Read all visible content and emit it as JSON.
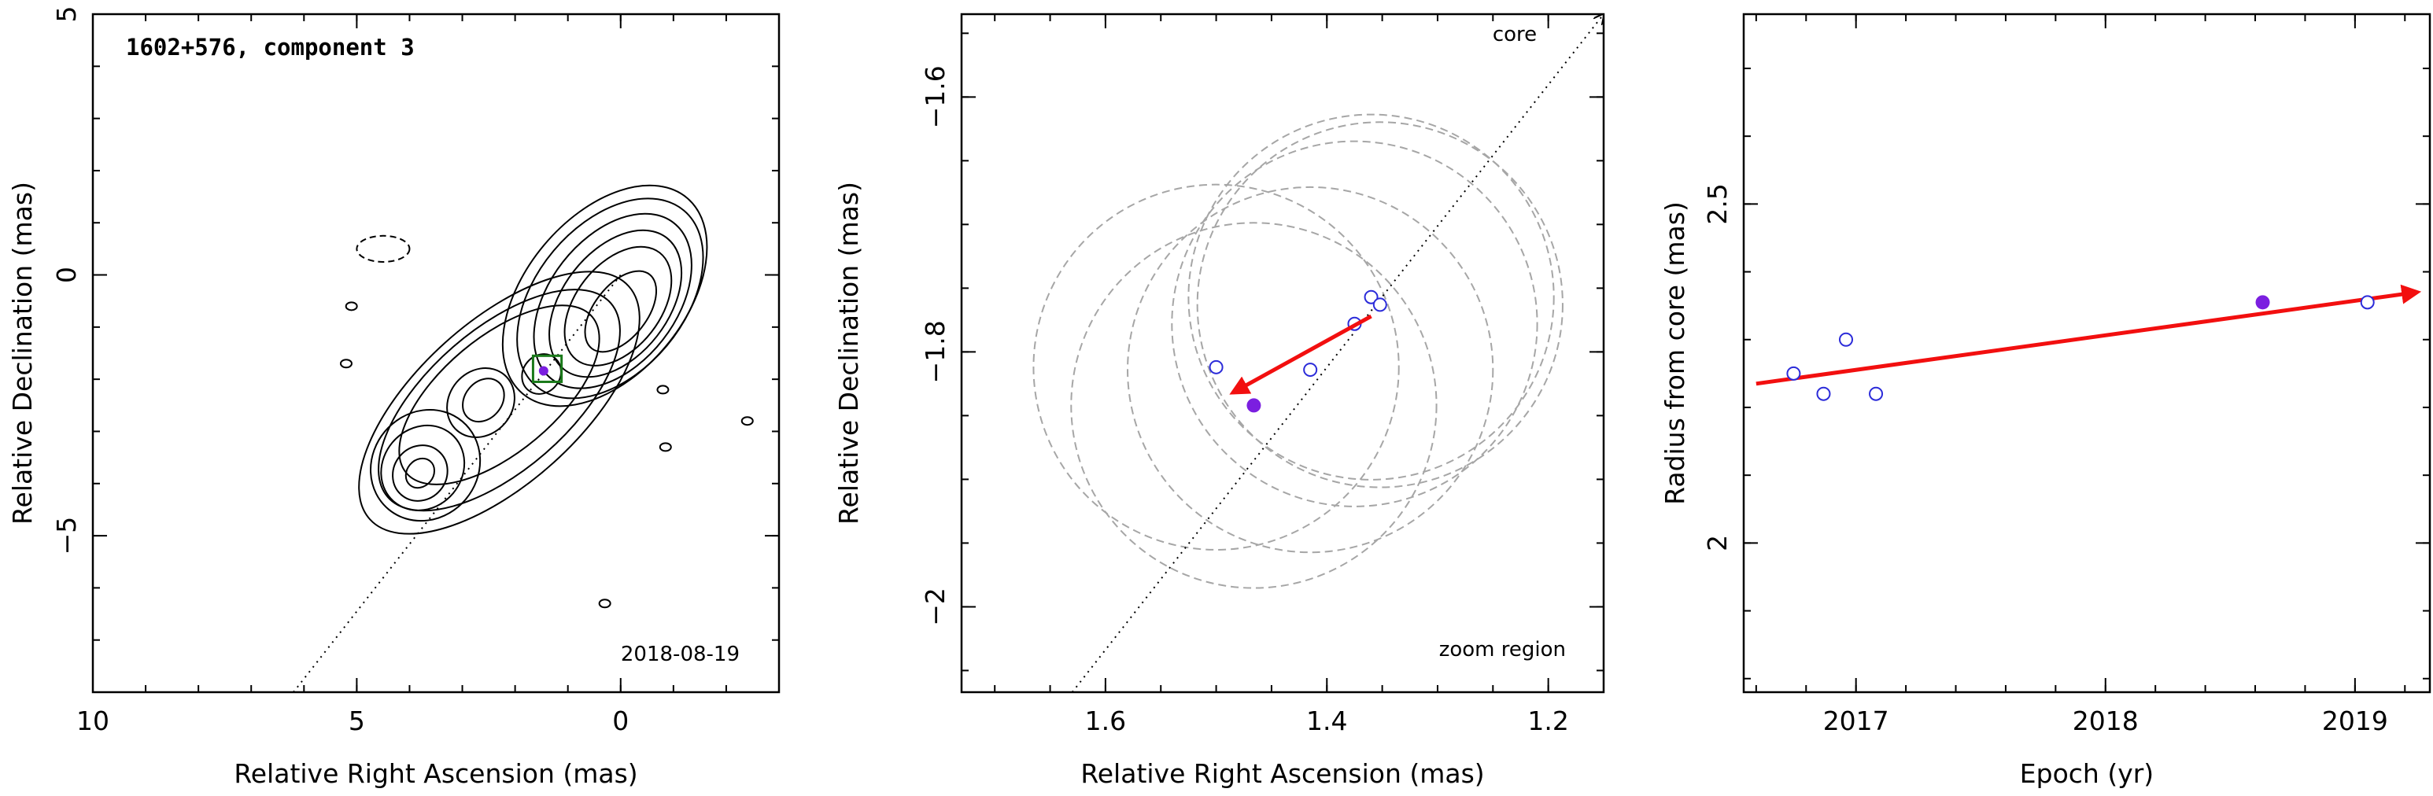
{
  "chart_data": [
    {
      "type": "map",
      "title": "1602+576, component 3",
      "date": "2018-08-19",
      "xlabel": "Relative Right Ascension (mas)",
      "ylabel": "Relative Declination (mas)",
      "xlim": [
        10,
        -3
      ],
      "ylim": [
        -8,
        5
      ],
      "xticks": [
        10,
        5,
        0
      ],
      "yticks": [
        -5,
        0,
        5
      ],
      "direction_line": [
        [
          6.2,
          -8.0
        ],
        [
          0.0,
          0.0
        ]
      ],
      "contours": [
        {
          "cx": 0.0,
          "cy": -0.7,
          "rx": 0.5,
          "ry": 0.9,
          "rot": 38
        },
        {
          "cx": 0.05,
          "cy": -0.6,
          "rx": 0.8,
          "ry": 1.3,
          "rot": 38
        },
        {
          "cx": 0.1,
          "cy": -0.55,
          "rx": 1.0,
          "ry": 1.6,
          "rot": 38
        },
        {
          "cx": 0.15,
          "cy": -0.5,
          "rx": 1.2,
          "ry": 1.9,
          "rot": 38
        },
        {
          "cx": 0.2,
          "cy": -0.45,
          "rx": 1.4,
          "ry": 2.2,
          "rot": 40
        },
        {
          "cx": 0.3,
          "cy": -0.4,
          "rx": 1.5,
          "ry": 2.45,
          "rot": 40
        },
        {
          "cx": 2.6,
          "cy": -2.4,
          "rx": 0.35,
          "ry": 0.45,
          "rot": 40
        },
        {
          "cx": 2.65,
          "cy": -2.45,
          "rx": 0.6,
          "ry": 0.7,
          "rot": 40
        },
        {
          "cx": 3.8,
          "cy": -3.8,
          "rx": 0.25,
          "ry": 0.3,
          "rot": 40
        },
        {
          "cx": 3.8,
          "cy": -3.8,
          "rx": 0.5,
          "ry": 0.55,
          "rot": 40
        },
        {
          "cx": 3.75,
          "cy": -3.7,
          "rx": 0.75,
          "ry": 0.85,
          "rot": 40
        },
        {
          "cx": 3.7,
          "cy": -3.65,
          "rx": 1.0,
          "ry": 1.1,
          "rot": 40
        },
        {
          "cx": 1.5,
          "cy": -1.9,
          "rx": 0.35,
          "ry": 0.4,
          "rot": 40
        },
        {
          "cx": 2.3,
          "cy": -2.3,
          "rx": 2.3,
          "ry": 1.1,
          "rot": -40
        },
        {
          "cx": 2.3,
          "cy": -2.4,
          "rx": 2.8,
          "ry": 1.35,
          "rot": -41
        },
        {
          "cx": 2.3,
          "cy": -2.45,
          "rx": 3.3,
          "ry": 1.55,
          "rot": -42
        }
      ],
      "negative_contours": [
        {
          "cx": 4.5,
          "cy": 0.5,
          "rx": 0.5,
          "ry": 0.25,
          "rot": 0
        }
      ],
      "noise_blobs": [
        {
          "x": 5.1,
          "y": -0.6
        },
        {
          "x": 5.2,
          "y": -1.7
        },
        {
          "x": -0.8,
          "y": -2.2
        },
        {
          "x": -2.4,
          "y": -2.8
        },
        {
          "x": -0.85,
          "y": -3.3
        },
        {
          "x": 0.3,
          "y": -6.3
        }
      ],
      "zoom_box": {
        "x0": 1.66,
        "x1": 1.12,
        "y0": -2.05,
        "y1": -1.55
      },
      "points_current": [
        {
          "x": 1.46,
          "y": -1.84
        }
      ]
    },
    {
      "type": "scatter",
      "title": "",
      "label_core": "core",
      "label_zoom": "zoom region",
      "xlabel": "Relative Right Ascension (mas)",
      "ylabel": "Relative Declination (mas)",
      "xlim": [
        1.73,
        1.15
      ],
      "ylim": [
        -2.067,
        -1.535
      ],
      "xticks": [
        1.6,
        1.4,
        1.2
      ],
      "yticks": [
        -1.6,
        -1.8,
        -2.0
      ],
      "direction_line": [
        [
          1.63,
          -2.067
        ],
        [
          1.15,
          -1.535
        ]
      ],
      "points_other": [
        {
          "x": 1.5,
          "y": -1.812
        },
        {
          "x": 1.415,
          "y": -1.814
        },
        {
          "x": 1.375,
          "y": -1.778
        },
        {
          "x": 1.36,
          "y": -1.757
        },
        {
          "x": 1.352,
          "y": -1.763
        }
      ],
      "points_current": [
        {
          "x": 1.466,
          "y": -1.842
        }
      ],
      "circles": [
        {
          "x": 1.5,
          "y": -1.812,
          "r": 0.165
        },
        {
          "x": 1.415,
          "y": -1.814,
          "r": 0.165
        },
        {
          "x": 1.375,
          "y": -1.778,
          "r": 0.165
        },
        {
          "x": 1.36,
          "y": -1.757,
          "r": 0.165
        },
        {
          "x": 1.352,
          "y": -1.763,
          "r": 0.165
        },
        {
          "x": 1.466,
          "y": -1.842,
          "r": 0.165
        }
      ],
      "vector": {
        "from": [
          1.36,
          -1.772
        ],
        "to": [
          1.485,
          -1.832
        ]
      }
    },
    {
      "type": "scatter",
      "title": "",
      "xlabel": "Epoch (yr)",
      "ylabel": "Radius from core (mas)",
      "xlim": [
        2016.55,
        2019.3
      ],
      "ylim": [
        1.78,
        2.78
      ],
      "xticks": [
        2017,
        2018,
        2019
      ],
      "yticks": [
        2,
        2.5
      ],
      "points_other": [
        {
          "x": 2016.75,
          "y": 2.25
        },
        {
          "x": 2016.87,
          "y": 2.22
        },
        {
          "x": 2016.96,
          "y": 2.3
        },
        {
          "x": 2017.08,
          "y": 2.22
        },
        {
          "x": 2019.05,
          "y": 2.355
        }
      ],
      "points_current": [
        {
          "x": 2018.63,
          "y": 2.355
        }
      ],
      "vector": {
        "from": [
          2016.6,
          2.235
        ],
        "to": [
          2019.25,
          2.37
        ]
      }
    }
  ],
  "colors": {
    "axis": "#000000",
    "contour": "#000000",
    "circle": "#a6a6a6",
    "open_point": "#2b2bd9",
    "filled_point": "#7b1fe0",
    "vector": "#f20f0f",
    "zoom_box": "#1a7a1a"
  }
}
